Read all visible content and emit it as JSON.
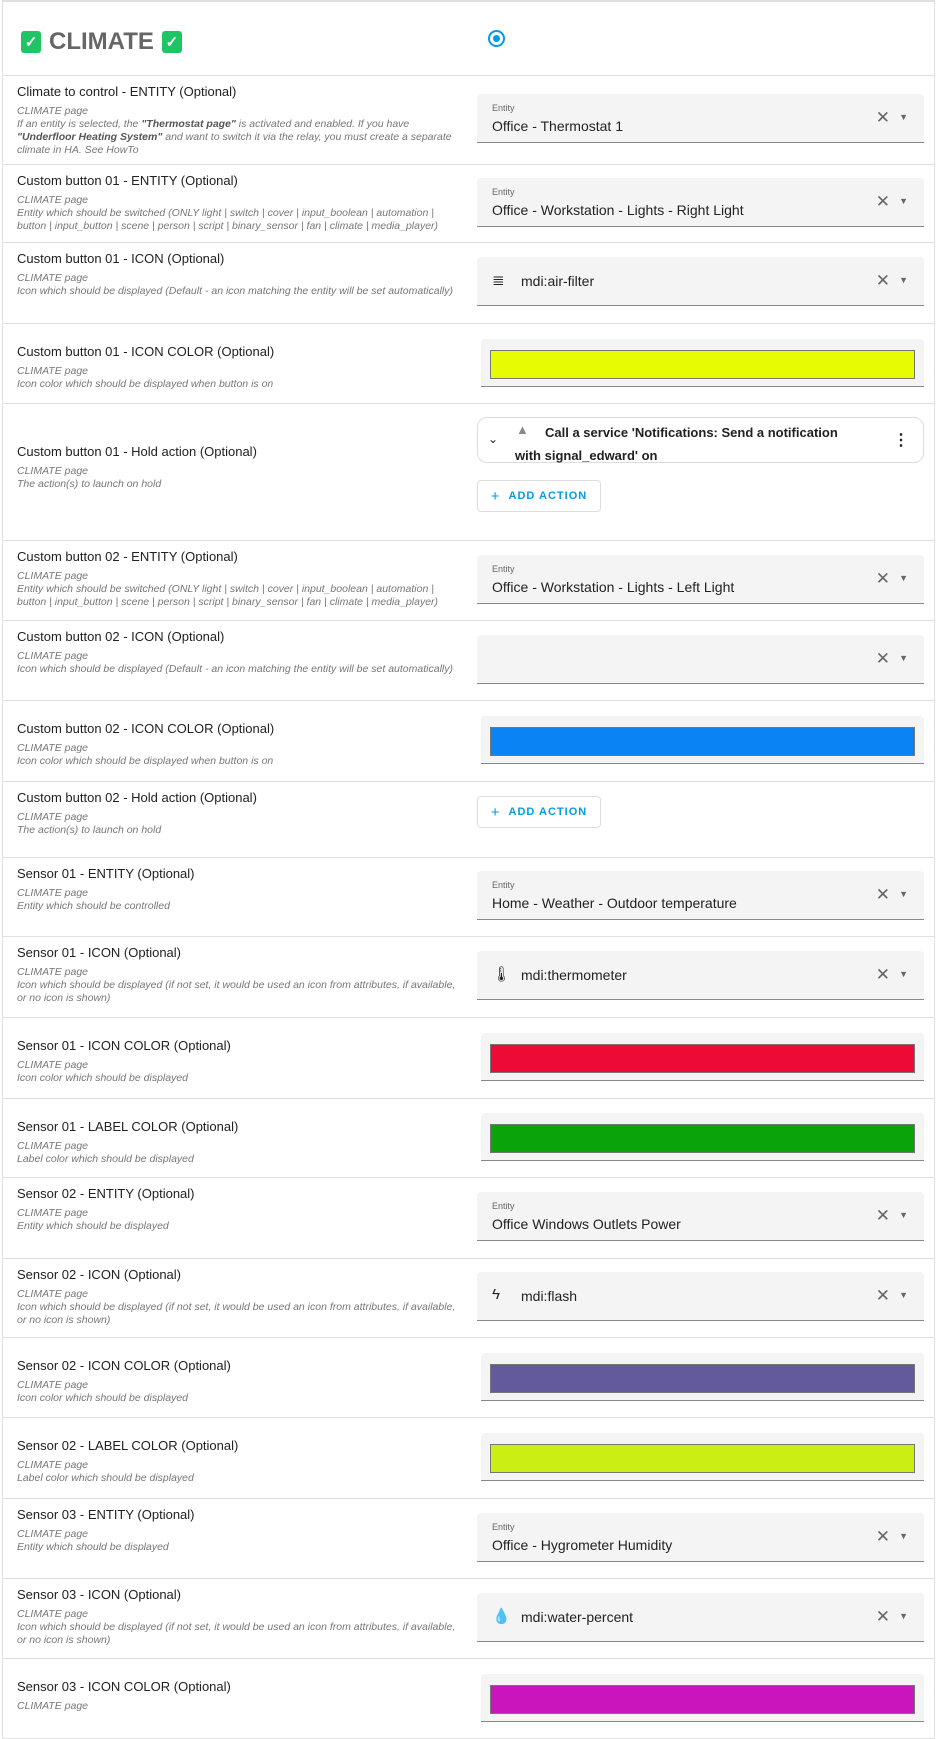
{
  "header": {
    "title": "CLIMATE",
    "check_icon": "check-box-icon",
    "radio_selected": true,
    "accent": "#039be5"
  },
  "rows": [
    {
      "type": "entity",
      "h": 89,
      "label": "Climate to control - ENTITY (Optional)",
      "desc": [
        [
          "CLIMATE page",
          ""
        ],
        [
          "\n",
          ""
        ],
        [
          "If an entity is selected, the ",
          ""
        ],
        [
          "\"Thermostat page\"",
          "b"
        ],
        [
          " is activated and enabled. If you have ",
          ""
        ],
        [
          "\"Underfloor Heating System\"",
          "b"
        ],
        [
          " and want to switch it via the relay, you must create a separate climate in HA. See HowTo",
          ""
        ]
      ],
      "caption": "Entity",
      "value": "Office - Thermostat 1"
    },
    {
      "type": "entity",
      "h": 78,
      "label": "Custom button 01 - ENTITY (Optional)",
      "desc": "CLIMATE page\nEntity which should be switched (ONLY light | switch | cover | input_boolean | automation | button | input_button | scene | person | script | binary_sensor | fan | climate | media_player)",
      "caption": "Entity",
      "value": "Office - Workstation - Lights - Right Light"
    },
    {
      "type": "icon",
      "h": 81,
      "label": "Custom button 01 - ICON (Optional)",
      "desc": "CLIMATE page\nIcon which should be displayed (Default - an icon matching the entity will be set automatically)",
      "icon": "air-filter-icon",
      "glyph": "≣",
      "value": "mdi:air-filter"
    },
    {
      "type": "color",
      "h": 80,
      "label": "Custom button 01 - ICON COLOR (Optional)",
      "desc": "CLIMATE page\nIcon color which should be displayed when button is on",
      "color": "#e8fc00"
    },
    {
      "type": "action",
      "h": 137,
      "label": "Custom button 01 - Hold action (Optional)",
      "desc": "CLIMATE page\nThe action(s) to launch on hold",
      "action": "Call a service 'Notifications: Send a notification with signal_edward' on",
      "add_label": "ADD ACTION"
    },
    {
      "type": "entity",
      "h": 80,
      "label": "Custom button 02 - ENTITY (Optional)",
      "desc": "CLIMATE page\nEntity which should be switched (ONLY light | switch | cover | input_boolean | automation | button | input_button | scene | person | script | binary_sensor | fan | climate | media_player)",
      "caption": "Entity",
      "value": "Office - Workstation - Lights - Left Light"
    },
    {
      "type": "icon",
      "h": 80,
      "label": "Custom button 02 - ICON (Optional)",
      "desc": "CLIMATE page\nIcon which should be displayed (Default - an icon matching the entity will be set automatically)",
      "value": ""
    },
    {
      "type": "color",
      "h": 81,
      "label": "Custom button 02 - ICON COLOR (Optional)",
      "desc": "CLIMATE page\nIcon color which should be displayed when button is on",
      "color": "#0a84f5"
    },
    {
      "type": "addonly",
      "h": 76,
      "label": "Custom button 02 - Hold action (Optional)",
      "desc": "CLIMATE page\nThe action(s) to launch on hold",
      "add_label": "ADD ACTION"
    },
    {
      "type": "entity",
      "h": 79,
      "label": "Sensor 01 - ENTITY (Optional)",
      "desc": "CLIMATE page\nEntity which should be controlled",
      "caption": "Entity",
      "value": "Home - Weather - Outdoor temperature"
    },
    {
      "type": "icon",
      "h": 81,
      "label": "Sensor 01 - ICON (Optional)",
      "desc": "CLIMATE page\nIcon which should be displayed (if not set, it would be used an icon from attributes, if available, or no icon is shown)",
      "icon": "thermometer-icon",
      "glyph": "🌡",
      "value": "mdi:thermometer"
    },
    {
      "type": "color",
      "h": 81,
      "label": "Sensor 01 - ICON COLOR (Optional)",
      "desc": "CLIMATE page\nIcon color which should be displayed",
      "color": "#ee0a37"
    },
    {
      "type": "color",
      "h": 79,
      "label": "Sensor 01 - LABEL COLOR (Optional)",
      "desc": "CLIMATE page\nLabel color which should be displayed",
      "color": "#0aa30a"
    },
    {
      "type": "entity",
      "h": 81,
      "label": "Sensor 02 - ENTITY (Optional)",
      "desc": "CLIMATE page\nEntity which should be displayed",
      "caption": "Entity",
      "value": "Office Windows Outlets Power"
    },
    {
      "type": "icon",
      "h": 79,
      "label": "Sensor 02 - ICON (Optional)",
      "desc": "CLIMATE page\nIcon which should be displayed (if not set, it would be used an icon from attributes, if available, or no icon is shown)",
      "icon": "flash-icon",
      "glyph": "ϟ",
      "value": "mdi:flash"
    },
    {
      "type": "color",
      "h": 80,
      "label": "Sensor 02 - ICON COLOR (Optional)",
      "desc": "CLIMATE page\nIcon color which should be displayed",
      "color": "#625a9c"
    },
    {
      "type": "color",
      "h": 81,
      "label": "Sensor 02 - LABEL COLOR (Optional)",
      "desc": "CLIMATE page\nLabel color which should be displayed",
      "color": "#cbef12"
    },
    {
      "type": "entity",
      "h": 80,
      "label": "Sensor 03 - ENTITY (Optional)",
      "desc": "CLIMATE page\nEntity which should be displayed",
      "caption": "Entity",
      "value": "Office - Hygrometer Humidity"
    },
    {
      "type": "icon",
      "h": 80,
      "label": "Sensor 03 - ICON (Optional)",
      "desc": "CLIMATE page\nIcon which should be displayed (if not set, it would be used an icon from attributes, if available, or no icon is shown)",
      "icon": "water-percent-icon",
      "glyph": "💧",
      "value": "mdi:water-percent"
    },
    {
      "type": "color",
      "h": 80,
      "label": "Sensor 03 - ICON COLOR (Optional)",
      "desc": "CLIMATE page",
      "color": "#c915bc"
    }
  ]
}
